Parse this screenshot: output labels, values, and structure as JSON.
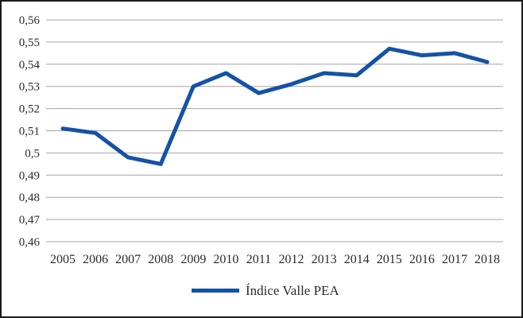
{
  "frame": {
    "background": "#ffffff",
    "border_color": "#1b1b1b"
  },
  "chart_data": {
    "type": "line",
    "title": "",
    "xlabel": "",
    "ylabel": "",
    "categories": [
      "2005",
      "2006",
      "2007",
      "2008",
      "2009",
      "2010",
      "2011",
      "2012",
      "2013",
      "2014",
      "2015",
      "2016",
      "2017",
      "2018"
    ],
    "series": [
      {
        "name": "Índice Valle PEA",
        "color": "#1552A6",
        "values": [
          0.511,
          0.509,
          0.498,
          0.495,
          0.53,
          0.536,
          0.527,
          0.531,
          0.536,
          0.535,
          0.547,
          0.544,
          0.545,
          0.541
        ]
      }
    ],
    "ylim": [
      0.46,
      0.56
    ],
    "y_tick_step": 0.01,
    "y_tick_labels": [
      "0,46",
      "0,47",
      "0,48",
      "0,49",
      "0,5",
      "0,51",
      "0,52",
      "0,53",
      "0,54",
      "0,55",
      "0,56"
    ],
    "decimal_separator": ",",
    "grid": true,
    "gridline_color": "#a4a4a4",
    "legend_position": "bottom",
    "legend_entries": [
      "Índice Valle PEA"
    ]
  }
}
